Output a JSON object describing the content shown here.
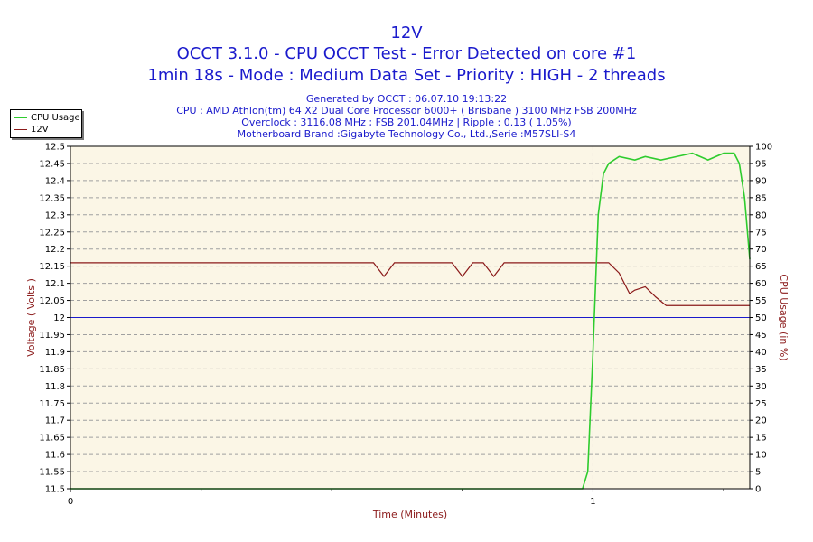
{
  "header": {
    "title": "12V",
    "subtitle_1": "OCCT 3.1.0 - CPU OCCT Test - Error Detected on core #1",
    "subtitle_2": "1min 18s - Mode : Medium Data Set - Priority : HIGH - 2 threads"
  },
  "info": {
    "generated": "Generated by OCCT : 06.07.10 19:13:22",
    "cpu": "CPU : AMD Athlon(tm) 64 X2 Dual Core Processor 6000+ ( Brisbane ) 3100 MHz FSB 200MHz",
    "overclock": "Overclock : 3116.08 MHz ; FSB 201.04MHz | Ripple : 0.13 ( 1.05%)",
    "motherboard": "Motherboard Brand :Gigabyte Technology Co., Ltd.,Serie :M57SLI-S4"
  },
  "legend": {
    "cpu_usage": "CPU Usage",
    "voltage": "12V"
  },
  "colors": {
    "cpu_usage": "#2ecc2e",
    "voltage": "#8b1a1a",
    "reference": "#1a1acc",
    "plot_bg": "#fbf6e6",
    "grid": "#a0a0a0"
  },
  "chart_data": {
    "type": "line",
    "xlabel": "Time (Minutes)",
    "ylabel_left": "Voltage ( Volts )",
    "ylabel_right": "CPU Usage (in %)",
    "xlim": [
      0,
      1.3
    ],
    "x_ticks": [
      "0",
      "1"
    ],
    "ylim_left": [
      11.5,
      12.5
    ],
    "ylim_right": [
      0,
      100
    ],
    "y_ticks_left": [
      "11.5",
      "11.55",
      "11.6",
      "11.65",
      "11.7",
      "11.75",
      "11.8",
      "11.85",
      "11.9",
      "11.95",
      "12",
      "12.05",
      "12.1",
      "12.15",
      "12.2",
      "12.25",
      "12.3",
      "12.35",
      "12.4",
      "12.45",
      "12.5"
    ],
    "y_ticks_right": [
      "0",
      "5",
      "10",
      "15",
      "20",
      "25",
      "30",
      "35",
      "40",
      "45",
      "50",
      "55",
      "60",
      "65",
      "70",
      "75",
      "80",
      "85",
      "90",
      "95",
      "100"
    ],
    "grid": true,
    "legend_position": "top-left",
    "reference_line": 12.0,
    "series": [
      {
        "name": "CPU Usage",
        "axis": "right",
        "x": [
          0,
          0.98,
          0.99,
          1.0,
          1.01,
          1.02,
          1.03,
          1.05,
          1.08,
          1.1,
          1.13,
          1.16,
          1.19,
          1.22,
          1.25,
          1.27,
          1.28,
          1.29,
          1.3
        ],
        "values": [
          0,
          0,
          5,
          40,
          80,
          92,
          95,
          97,
          96,
          97,
          96,
          97,
          98,
          96,
          98,
          98,
          95,
          85,
          67
        ]
      },
      {
        "name": "12V",
        "axis": "left",
        "x": [
          0,
          0.58,
          0.6,
          0.62,
          0.73,
          0.75,
          0.77,
          0.79,
          0.81,
          0.83,
          1.03,
          1.05,
          1.07,
          1.08,
          1.1,
          1.12,
          1.14,
          1.3
        ],
        "values": [
          12.16,
          12.16,
          12.12,
          12.16,
          12.16,
          12.12,
          12.16,
          12.16,
          12.12,
          12.16,
          12.16,
          12.13,
          12.07,
          12.08,
          12.09,
          12.06,
          12.035,
          12.035
        ]
      }
    ]
  }
}
